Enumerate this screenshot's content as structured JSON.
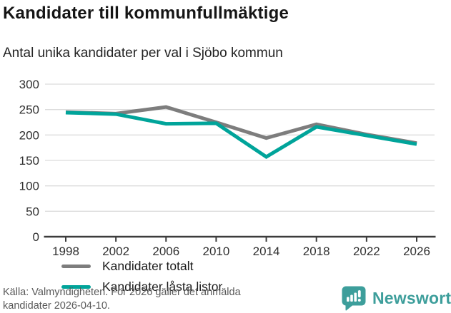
{
  "header": {
    "title": "Kandidater till kommunfullmäktige",
    "subtitle": "Antal unika kandidater per val i Sjöbo kommun"
  },
  "chart_data": {
    "type": "line",
    "categories": [
      "1998",
      "2002",
      "2006",
      "2010",
      "2014",
      "2018",
      "2022",
      "2026"
    ],
    "series": [
      {
        "name": "Kandidater totalt",
        "color": "#7d7d7d",
        "values": [
          245,
          242,
          255,
          225,
          194,
          221,
          201,
          184
        ]
      },
      {
        "name": "Kandidater låsta listor",
        "color": "#00a49a",
        "values": [
          244,
          241,
          222,
          223,
          157,
          216,
          199,
          182
        ]
      }
    ],
    "title": "Kandidater till kommunfullmäktige",
    "subtitle": "Antal unika kandidater per val i Sjöbo kommun",
    "xlabel": "",
    "ylabel": "",
    "ylim": [
      0,
      300
    ],
    "yticks": [
      0,
      50,
      100,
      150,
      200,
      250,
      300
    ],
    "grid": true,
    "legend_position": "inside-bottom-left"
  },
  "footer": {
    "source_lines": [
      "Källa: Valmyndigheten. För 2026 gäller det anmälda",
      "kandidater 2026-04-10."
    ],
    "brand_name": "Newsworthy"
  },
  "colors": {
    "line_total": "#7d7d7d",
    "line_locked": "#00a49a",
    "brand_teal": "#3d9e9b",
    "gridline": "#dcdcdc",
    "axis": "#3c3c3c",
    "axis_text": "#303030",
    "footer_text": "#595959"
  }
}
